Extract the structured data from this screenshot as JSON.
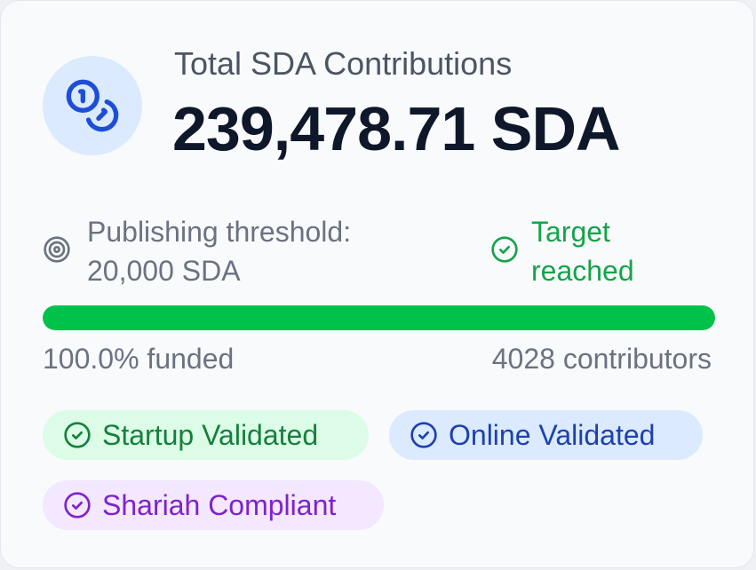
{
  "card": {
    "title": "Total SDA Contributions",
    "amount": "239,478.71 SDA",
    "icon": "coins-icon"
  },
  "threshold": {
    "label": "Publishing threshold:",
    "value": "20,000 SDA",
    "icon": "target-icon"
  },
  "status": {
    "line1": "Target",
    "line2": "reached",
    "icon": "check-circle-icon",
    "color": "#16a34a"
  },
  "progress": {
    "fraction": 1.0,
    "color": "#00c24b",
    "funded_label": "100.0% funded",
    "contributors_label": "4028 contributors"
  },
  "badges": [
    {
      "label": "Startup Validated",
      "icon": "check-circle-icon",
      "bg": "#dcfce7",
      "color": "#15803d"
    },
    {
      "label": "Online Validated",
      "icon": "check-circle-icon",
      "bg": "#dbeafe",
      "color": "#1e40af"
    },
    {
      "label": "Shariah Compliant",
      "icon": "check-circle-icon",
      "bg": "#f3e8ff",
      "color": "#7e22ce"
    }
  ]
}
